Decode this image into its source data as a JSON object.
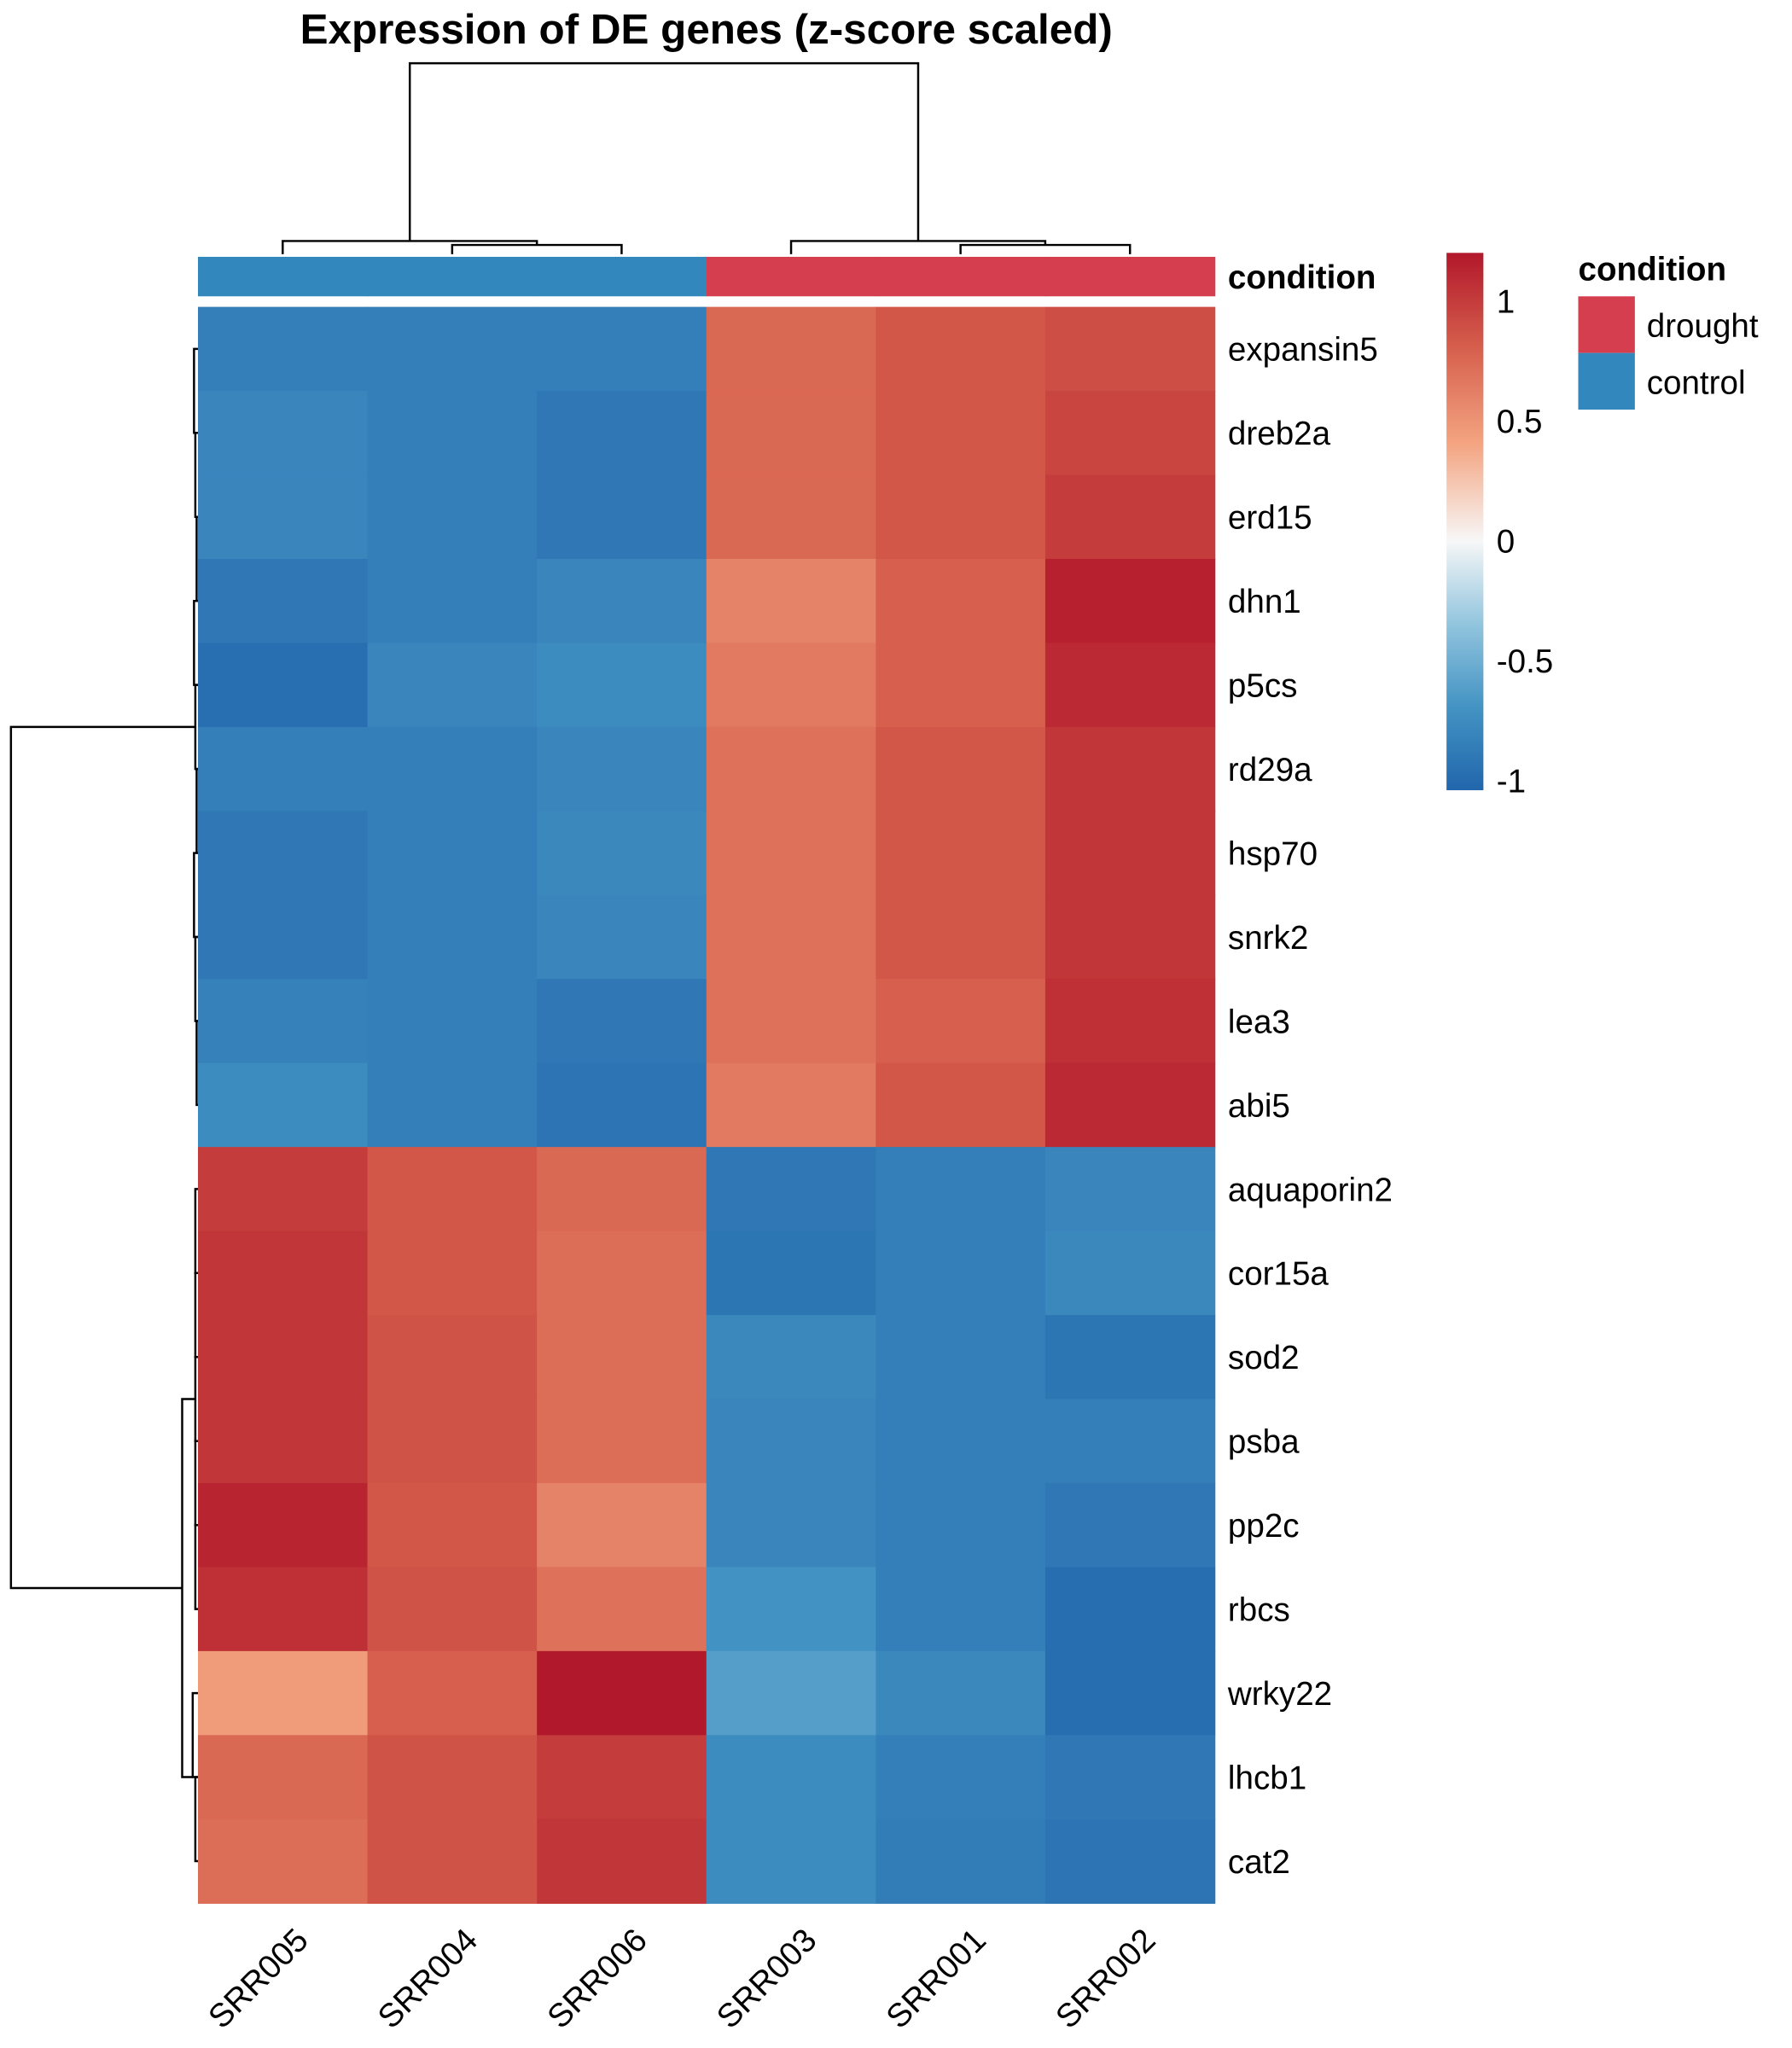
{
  "chart_data": {
    "type": "heatmap",
    "title": "Expression of DE genes (z-score scaled)",
    "columns": [
      "SRR005",
      "SRR004",
      "SRR006",
      "SRR003",
      "SRR001",
      "SRR002"
    ],
    "rows": [
      "expansin5",
      "dreb2a",
      "erd15",
      "dhn1",
      "p5cs",
      "rd29a",
      "hsp70",
      "snrk2",
      "lea3",
      "abi5",
      "aquaporin2",
      "cor15a",
      "sod2",
      "psba",
      "pp2c",
      "rbcs",
      "wrky22",
      "lhcb1",
      "cat2"
    ],
    "values": [
      [
        -0.85,
        -0.85,
        -0.85,
        0.75,
        0.85,
        0.9
      ],
      [
        -0.8,
        -0.85,
        -0.9,
        0.75,
        0.85,
        0.95
      ],
      [
        -0.8,
        -0.85,
        -0.9,
        0.75,
        0.85,
        1.0
      ],
      [
        -0.9,
        -0.85,
        -0.8,
        0.6,
        0.8,
        1.15
      ],
      [
        -0.97,
        -0.8,
        -0.75,
        0.65,
        0.8,
        1.1
      ],
      [
        -0.85,
        -0.85,
        -0.8,
        0.7,
        0.85,
        1.03
      ],
      [
        -0.9,
        -0.85,
        -0.78,
        0.7,
        0.85,
        1.03
      ],
      [
        -0.9,
        -0.85,
        -0.8,
        0.7,
        0.85,
        1.03
      ],
      [
        -0.83,
        -0.85,
        -0.9,
        0.7,
        0.8,
        1.07
      ],
      [
        -0.75,
        -0.85,
        -0.93,
        0.65,
        0.85,
        1.1
      ],
      [
        1.0,
        0.85,
        0.75,
        -0.9,
        -0.85,
        -0.8
      ],
      [
        1.03,
        0.85,
        0.72,
        -0.92,
        -0.85,
        -0.78
      ],
      [
        1.03,
        0.87,
        0.72,
        -0.78,
        -0.85,
        -0.92
      ],
      [
        1.03,
        0.87,
        0.72,
        -0.8,
        -0.85,
        -0.85
      ],
      [
        1.13,
        0.85,
        0.6,
        -0.8,
        -0.85,
        -0.9
      ],
      [
        1.07,
        0.87,
        0.7,
        -0.7,
        -0.85,
        -0.98
      ],
      [
        0.45,
        0.8,
        1.2,
        -0.62,
        -0.78,
        -0.98
      ],
      [
        0.75,
        0.87,
        1.0,
        -0.75,
        -0.85,
        -0.9
      ],
      [
        0.72,
        0.87,
        1.03,
        -0.75,
        -0.87,
        -0.93
      ]
    ],
    "annotation": {
      "title": "condition",
      "values": [
        "control",
        "control",
        "control",
        "drought",
        "drought",
        "drought"
      ],
      "legend": [
        {
          "label": "drought",
          "color": "#D53E4F"
        },
        {
          "label": "control",
          "color": "#3288BD"
        }
      ]
    },
    "colorbar": {
      "ticks": [
        1,
        0.5,
        0,
        -0.5,
        -1
      ],
      "tick_labels": [
        "1",
        "0.5",
        "0",
        "-0.5",
        "-1"
      ],
      "range": [
        -1.04,
        1.2
      ],
      "colors": [
        "#2166AC",
        "#4393C3",
        "#92C5DE",
        "#F7F7F7",
        "#F4A582",
        "#D6604D",
        "#B2182B"
      ]
    },
    "dendrograms": {
      "rows": true,
      "columns": true
    }
  }
}
